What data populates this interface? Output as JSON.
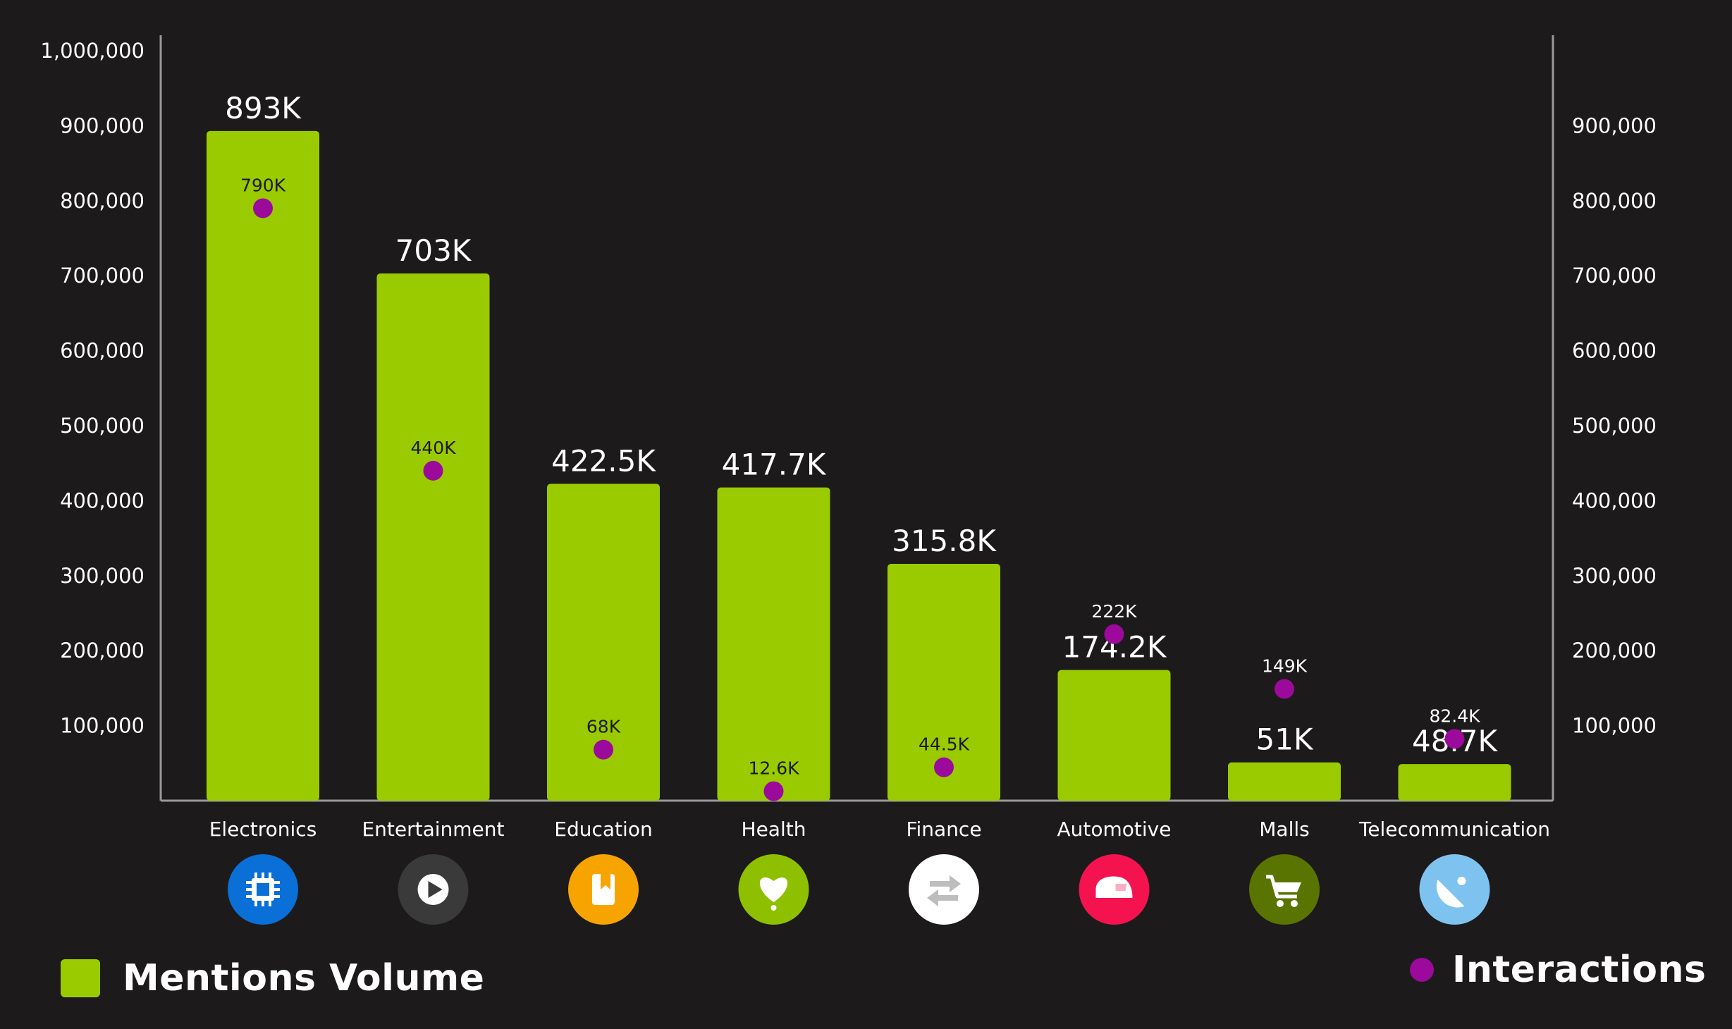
{
  "chart_data": {
    "type": "bar",
    "categories": [
      "Electronics",
      "Entertainment",
      "Education",
      "Health",
      "Finance",
      "Automotive",
      "Malls",
      "Telecommunication"
    ],
    "category_icons": [
      "chip-icon",
      "play-icon",
      "bookmark-icon",
      "heart-icon",
      "transfer-arrows-icon",
      "car-icon",
      "cart-icon",
      "satellite-dish-icon"
    ],
    "category_icon_colors": [
      "#0a6fd6",
      "#3a3a3a",
      "#f7a400",
      "#8ec000",
      "#ffffff",
      "#f5134f",
      "#5a7400",
      "#7ec3f0"
    ],
    "series": [
      {
        "name": "Mentions Volume",
        "kind": "bar",
        "axis": "left",
        "color": "#9acb00",
        "values": [
          893000,
          703000,
          422500,
          417700,
          315800,
          174200,
          51000,
          48700
        ],
        "labels": [
          "893K",
          "703K",
          "422.5K",
          "417.7K",
          "315.8K",
          "174.2K",
          "51K",
          "48.7K"
        ]
      },
      {
        "name": "Interactions",
        "kind": "point",
        "axis": "right",
        "color": "#9b0a9b",
        "values": [
          790000,
          440000,
          68000,
          12600,
          44500,
          222000,
          149000,
          82400
        ],
        "labels": [
          "790K",
          "440K",
          "68K",
          "12.6K",
          "44.5K",
          "222K",
          "149K",
          "82.4K"
        ]
      }
    ],
    "left_axis": {
      "ylim": [
        0,
        1000000
      ],
      "ticks": [
        "100,000",
        "200,000",
        "300,000",
        "400,000",
        "500,000",
        "600,000",
        "700,000",
        "800,000",
        "900,000",
        "1,000,000"
      ]
    },
    "right_axis": {
      "ylim": [
        0,
        900000
      ],
      "ticks": [
        "100,000",
        "200,000",
        "300,000",
        "400,000",
        "500,000",
        "600,000",
        "700,000",
        "800,000",
        "900,000"
      ]
    },
    "grid": false,
    "legend": "bottom"
  }
}
